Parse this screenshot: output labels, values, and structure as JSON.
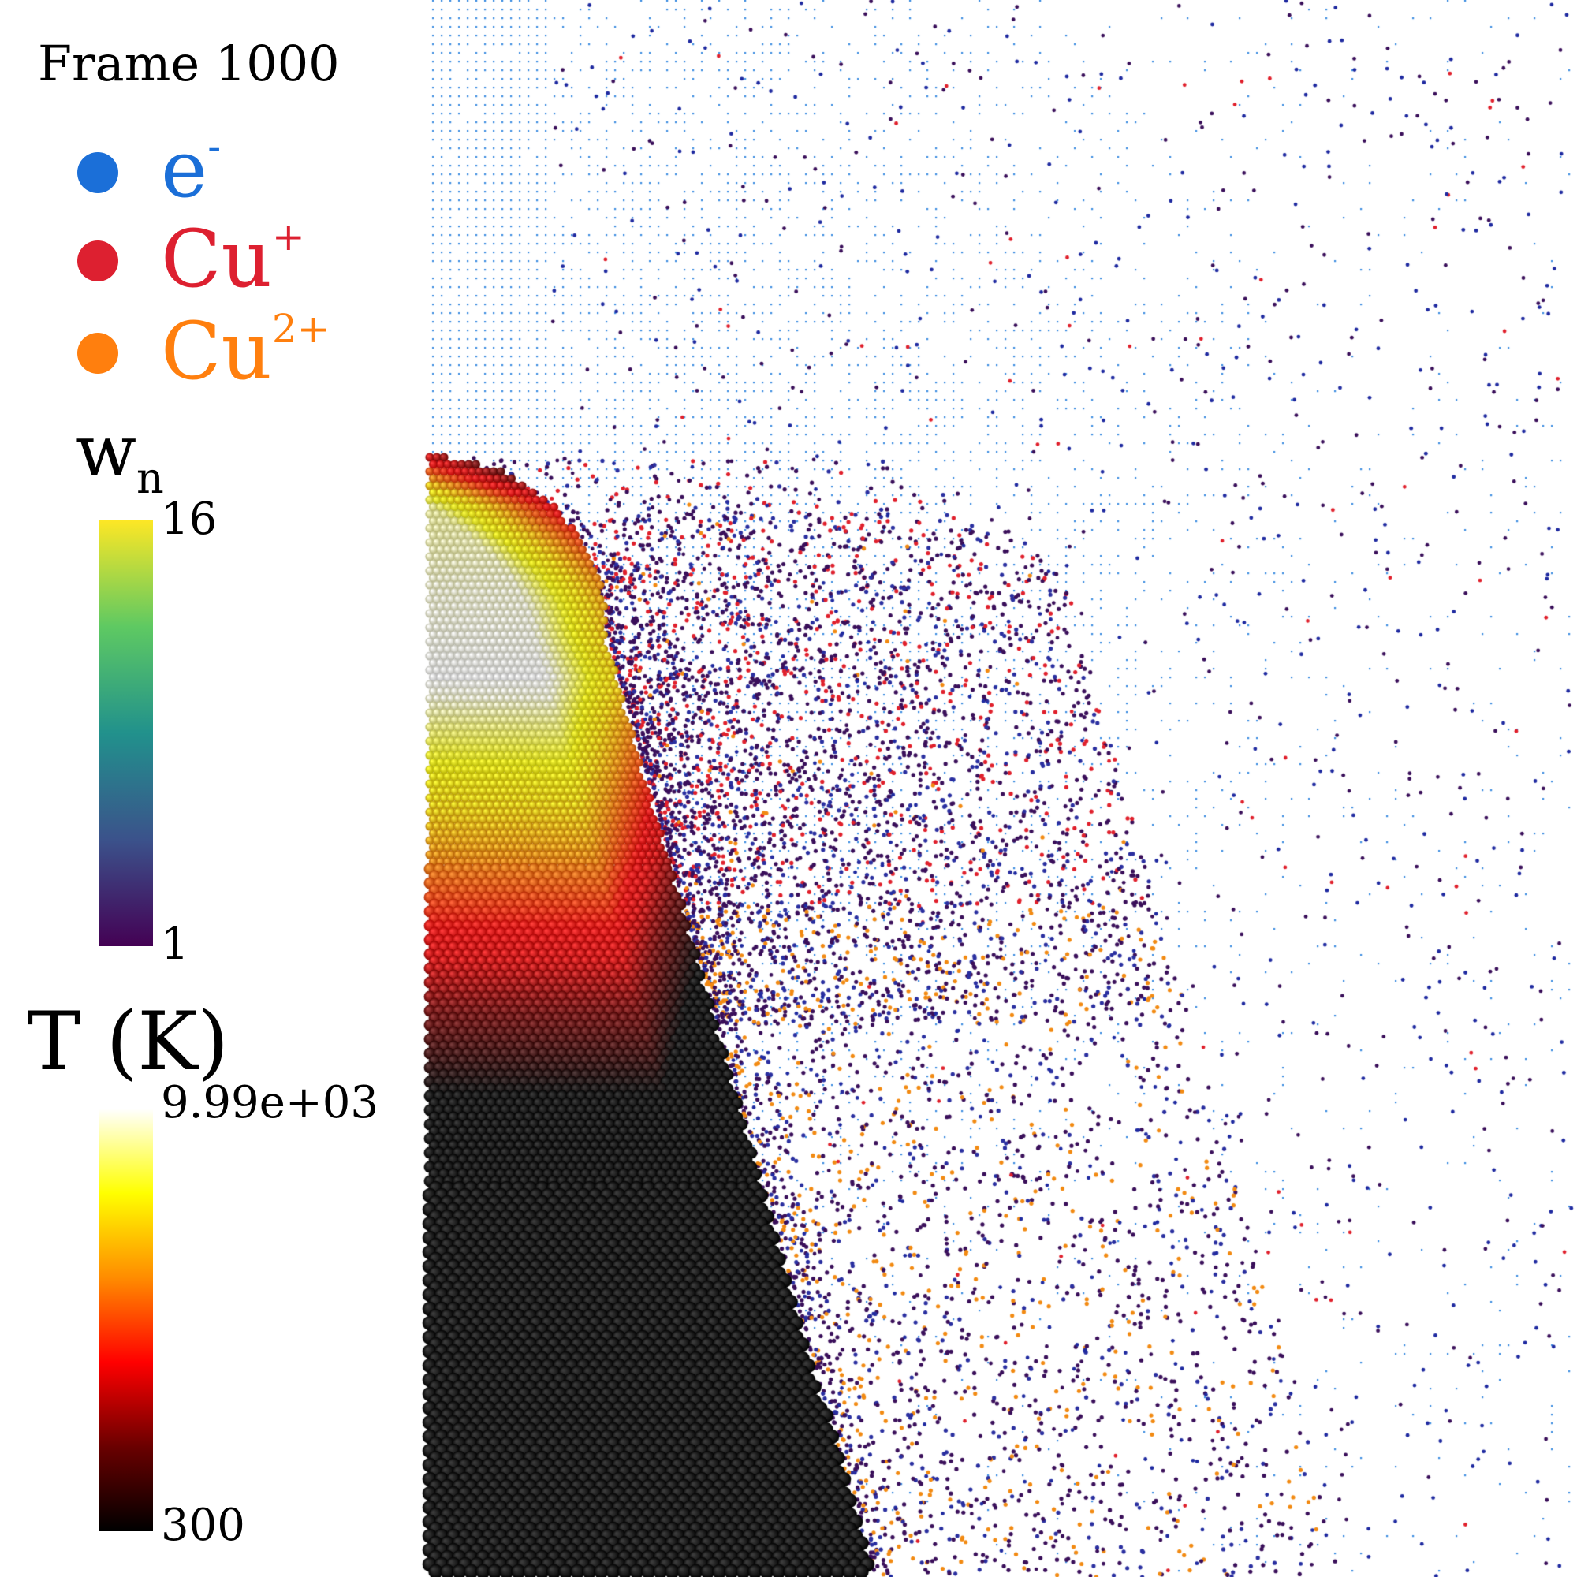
{
  "frame_label": "Frame 1000",
  "legend": [
    {
      "name": "e",
      "sup": "-",
      "color": "#1b6fd8",
      "icon": "circle-marker"
    },
    {
      "name": "Cu",
      "sup": "+",
      "color": "#dd2030",
      "icon": "circle-marker"
    },
    {
      "name": "Cu",
      "sup": "2+",
      "color": "#ff7f0e",
      "icon": "circle-marker"
    }
  ],
  "wn_colorbar": {
    "title_main": "w",
    "title_sub": "n",
    "max_label": "16",
    "min_label": "1",
    "colormap": "viridis",
    "stops": [
      "#440154",
      "#3b528b",
      "#21918c",
      "#5ec962",
      "#fde725"
    ]
  },
  "temperature_colorbar": {
    "title": "T (K)",
    "max_label": "9.99e+03",
    "min_label": "300",
    "colormap": "hot",
    "stops": [
      "#000000",
      "#6a0000",
      "#ff0000",
      "#ff8c00",
      "#ffff00",
      "#ffffff"
    ]
  },
  "colors": {
    "electron_trace": "#3a8be0",
    "neutral_particle": "#3a0f5a",
    "background": "#ffffff"
  }
}
